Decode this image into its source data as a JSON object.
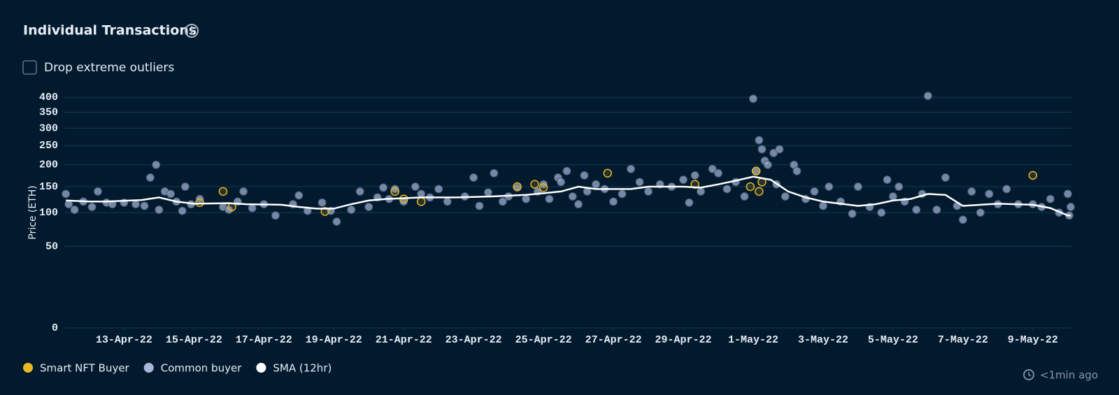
{
  "header": {
    "title": "Individual Transactions",
    "checkbox_label": "Drop extreme outliers"
  },
  "footer": {
    "updated": "<1min ago"
  },
  "chart_data": {
    "type": "scatter",
    "y_label": "Price (ETH)",
    "y_scale": "sqrt",
    "grid": true,
    "xlim": [
      "2022-04-11T07:00",
      "2022-05-10T02:30"
    ],
    "ylim": [
      0,
      420
    ],
    "yticks": [
      0,
      50,
      100,
      150,
      200,
      250,
      300,
      350,
      400
    ],
    "xticks": [
      {
        "value": "2022-04-13",
        "label": "13-Apr-22"
      },
      {
        "value": "2022-04-15",
        "label": "15-Apr-22"
      },
      {
        "value": "2022-04-17",
        "label": "17-Apr-22"
      },
      {
        "value": "2022-04-19",
        "label": "19-Apr-22"
      },
      {
        "value": "2022-04-21",
        "label": "21-Apr-22"
      },
      {
        "value": "2022-04-23",
        "label": "23-Apr-22"
      },
      {
        "value": "2022-04-25",
        "label": "25-Apr-22"
      },
      {
        "value": "2022-04-27",
        "label": "27-Apr-22"
      },
      {
        "value": "2022-04-29",
        "label": "29-Apr-22"
      },
      {
        "value": "2022-05-01",
        "label": "1-May-22"
      },
      {
        "value": "2022-05-03",
        "label": "3-May-22"
      },
      {
        "value": "2022-05-05",
        "label": "5-May-22"
      },
      {
        "value": "2022-05-07",
        "label": "7-May-22"
      },
      {
        "value": "2022-05-09",
        "label": "9-May-22"
      }
    ],
    "series": [
      {
        "name": "Smart NFT Buyer",
        "color": "#e9b824",
        "type": "scatter",
        "x": [
          "2022-04-15T04:00",
          "2022-04-15T20:00",
          "2022-04-16T02:00",
          "2022-04-18T18:00",
          "2022-04-20T18:00",
          "2022-04-21T00:00",
          "2022-04-21T12:00",
          "2022-04-24T06:00",
          "2022-04-24T18:00",
          "2022-04-25T00:00",
          "2022-04-26T20:00",
          "2022-04-29T08:00",
          "2022-04-30T22:00",
          "2022-05-01T02:00",
          "2022-05-01T04:00",
          "2022-05-01T06:00",
          "2022-05-09T00:00"
        ],
        "values": [
          118,
          140,
          110,
          102,
          140,
          125,
          120,
          150,
          155,
          148,
          180,
          155,
          150,
          185,
          140,
          160,
          175
        ]
      },
      {
        "name": "Common buyer",
        "color": "#a9b8da",
        "type": "scatter",
        "x": [
          "2022-04-11T08:00",
          "2022-04-11T10:00",
          "2022-04-11T14:00",
          "2022-04-11T20:00",
          "2022-04-12T02:00",
          "2022-04-12T06:00",
          "2022-04-12T12:00",
          "2022-04-12T16:00",
          "2022-04-13T00:00",
          "2022-04-13T08:00",
          "2022-04-13T14:00",
          "2022-04-13T18:00",
          "2022-04-13T22:00",
          "2022-04-14T00:00",
          "2022-04-14T04:00",
          "2022-04-14T08:00",
          "2022-04-14T12:00",
          "2022-04-14T16:00",
          "2022-04-14T18:00",
          "2022-04-14T22:00",
          "2022-04-15T04:00",
          "2022-04-15T20:00",
          "2022-04-16T00:00",
          "2022-04-16T06:00",
          "2022-04-16T10:00",
          "2022-04-16T16:00",
          "2022-04-17T00:00",
          "2022-04-17T08:00",
          "2022-04-17T20:00",
          "2022-04-18T00:00",
          "2022-04-18T06:00",
          "2022-04-18T16:00",
          "2022-04-18T22:00",
          "2022-04-19T02:00",
          "2022-04-19T12:00",
          "2022-04-19T18:00",
          "2022-04-20T00:00",
          "2022-04-20T06:00",
          "2022-04-20T10:00",
          "2022-04-20T14:00",
          "2022-04-20T18:00",
          "2022-04-21T00:00",
          "2022-04-21T08:00",
          "2022-04-21T12:00",
          "2022-04-21T18:00",
          "2022-04-22T00:00",
          "2022-04-22T06:00",
          "2022-04-22T18:00",
          "2022-04-23T00:00",
          "2022-04-23T04:00",
          "2022-04-23T10:00",
          "2022-04-23T14:00",
          "2022-04-23T20:00",
          "2022-04-24T00:00",
          "2022-04-24T06:00",
          "2022-04-24T12:00",
          "2022-04-24T20:00",
          "2022-04-25T00:00",
          "2022-04-25T04:00",
          "2022-04-25T10:00",
          "2022-04-25T12:00",
          "2022-04-25T16:00",
          "2022-04-25T20:00",
          "2022-04-26T00:00",
          "2022-04-26T04:00",
          "2022-04-26T06:00",
          "2022-04-26T12:00",
          "2022-04-26T18:00",
          "2022-04-27T00:00",
          "2022-04-27T06:00",
          "2022-04-27T12:00",
          "2022-04-27T18:00",
          "2022-04-28T00:00",
          "2022-04-28T08:00",
          "2022-04-28T16:00",
          "2022-04-29T00:00",
          "2022-04-29T04:00",
          "2022-04-29T08:00",
          "2022-04-29T12:00",
          "2022-04-29T20:00",
          "2022-04-30T00:00",
          "2022-04-30T06:00",
          "2022-04-30T12:00",
          "2022-04-30T18:00",
          "2022-05-01T00:00",
          "2022-05-01T02:00",
          "2022-05-01T04:00",
          "2022-05-01T06:00",
          "2022-05-01T08:00",
          "2022-05-01T10:00",
          "2022-05-01T14:00",
          "2022-05-01T16:00",
          "2022-05-01T18:00",
          "2022-05-01T22:00",
          "2022-05-02T04:00",
          "2022-05-02T06:00",
          "2022-05-02T12:00",
          "2022-05-02T18:00",
          "2022-05-03T00:00",
          "2022-05-03T04:00",
          "2022-05-03T12:00",
          "2022-05-03T20:00",
          "2022-05-04T00:00",
          "2022-05-04T08:00",
          "2022-05-04T16:00",
          "2022-05-04T20:00",
          "2022-05-05T00:00",
          "2022-05-05T04:00",
          "2022-05-05T08:00",
          "2022-05-05T16:00",
          "2022-05-05T20:00",
          "2022-05-06T00:00",
          "2022-05-06T06:00",
          "2022-05-06T12:00",
          "2022-05-06T20:00",
          "2022-05-07T00:00",
          "2022-05-07T06:00",
          "2022-05-07T12:00",
          "2022-05-07T18:00",
          "2022-05-08T00:00",
          "2022-05-08T06:00",
          "2022-05-08T14:00",
          "2022-05-09T00:00",
          "2022-05-09T06:00",
          "2022-05-09T12:00",
          "2022-05-09T18:00",
          "2022-05-10T00:00",
          "2022-05-10T01:00",
          "2022-05-10T02:00"
        ],
        "values": [
          135,
          115,
          105,
          120,
          110,
          140,
          118,
          115,
          118,
          115,
          112,
          170,
          200,
          105,
          140,
          135,
          120,
          103,
          150,
          115,
          125,
          110,
          105,
          120,
          140,
          108,
          115,
          95,
          115,
          132,
          103,
          118,
          103,
          85,
          105,
          140,
          110,
          128,
          148,
          125,
          145,
          120,
          150,
          135,
          128,
          145,
          120,
          130,
          170,
          112,
          138,
          180,
          120,
          130,
          148,
          125,
          140,
          155,
          125,
          170,
          160,
          185,
          130,
          115,
          175,
          140,
          155,
          145,
          120,
          135,
          190,
          160,
          140,
          155,
          150,
          165,
          118,
          175,
          140,
          190,
          180,
          145,
          160,
          130,
          395,
          185,
          265,
          240,
          210,
          200,
          230,
          155,
          240,
          130,
          200,
          185,
          125,
          140,
          112,
          150,
          120,
          98,
          150,
          110,
          100,
          165,
          130,
          150,
          120,
          105,
          135,
          405,
          105,
          170,
          112,
          88,
          140,
          100,
          135,
          115,
          145,
          115,
          115,
          110,
          125,
          100,
          135,
          95,
          110
        ]
      },
      {
        "name": "SMA (12hr)",
        "color": "#ffffff",
        "type": "line",
        "x": [
          "2022-04-11T08:00",
          "2022-04-12T00:00",
          "2022-04-12T12:00",
          "2022-04-13T12:00",
          "2022-04-14T00:00",
          "2022-04-14T12:00",
          "2022-04-15T00:00",
          "2022-04-16T00:00",
          "2022-04-16T12:00",
          "2022-04-17T12:00",
          "2022-04-18T00:00",
          "2022-04-18T12:00",
          "2022-04-19T00:00",
          "2022-04-19T12:00",
          "2022-04-20T00:00",
          "2022-04-20T12:00",
          "2022-04-21T12:00",
          "2022-04-22T12:00",
          "2022-04-23T12:00",
          "2022-04-24T12:00",
          "2022-04-25T12:00",
          "2022-04-26T00:00",
          "2022-04-26T12:00",
          "2022-04-27T12:00",
          "2022-04-28T00:00",
          "2022-04-29T00:00",
          "2022-04-29T12:00",
          "2022-04-30T00:00",
          "2022-04-30T12:00",
          "2022-05-01T00:00",
          "2022-05-01T12:00",
          "2022-05-02T00:00",
          "2022-05-02T12:00",
          "2022-05-03T00:00",
          "2022-05-03T12:00",
          "2022-05-04T00:00",
          "2022-05-04T12:00",
          "2022-05-05T00:00",
          "2022-05-05T12:00",
          "2022-05-06T00:00",
          "2022-05-06T12:00",
          "2022-05-07T00:00",
          "2022-05-07T12:00",
          "2022-05-08T00:00",
          "2022-05-08T12:00",
          "2022-05-09T00:00",
          "2022-05-09T12:00",
          "2022-05-10T00:00",
          "2022-05-10T02:00"
        ],
        "values": [
          122,
          120,
          120,
          123,
          128,
          120,
          116,
          117,
          115,
          114,
          110,
          107,
          107,
          115,
          122,
          125,
          128,
          128,
          130,
          133,
          140,
          150,
          145,
          145,
          150,
          150,
          148,
          155,
          163,
          172,
          165,
          140,
          128,
          120,
          116,
          112,
          115,
          122,
          125,
          135,
          133,
          112,
          114,
          116,
          115,
          114,
          108,
          95,
          95
        ]
      }
    ]
  }
}
